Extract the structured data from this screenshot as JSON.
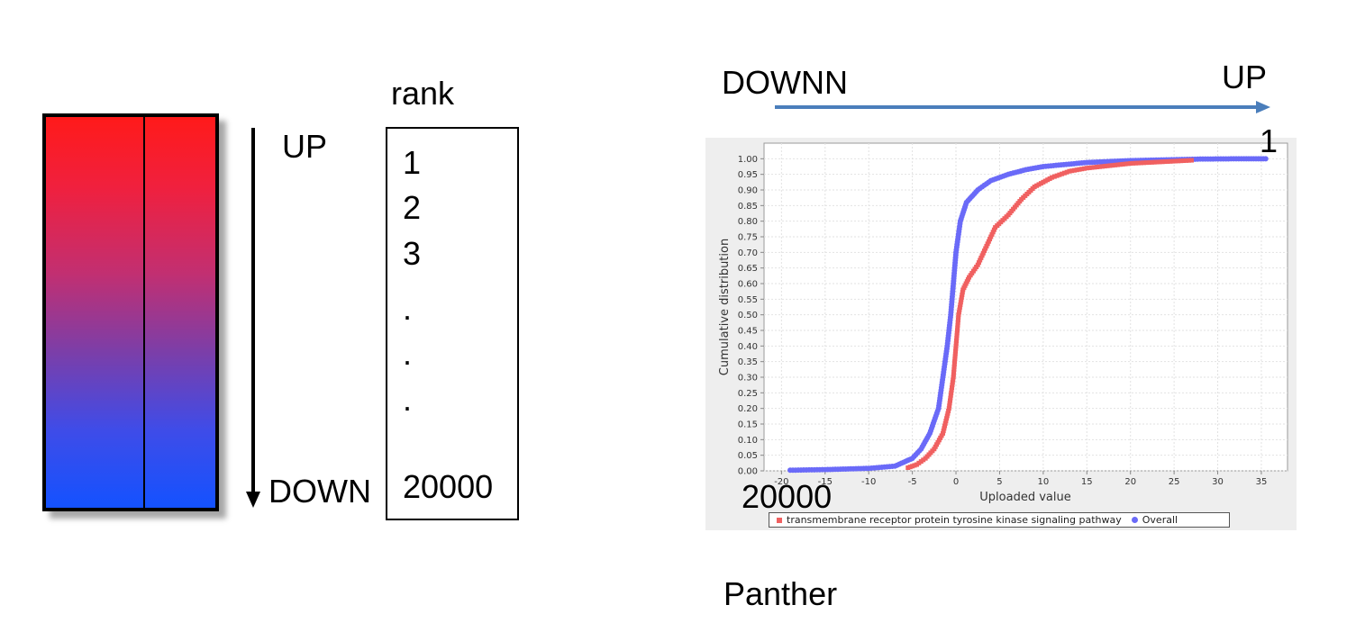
{
  "heatmap": {
    "top_color": "#ff1a1a",
    "bottom_color": "#1452ff"
  },
  "left_labels": {
    "up": "UP",
    "down": "DOWN",
    "rank_header": "rank"
  },
  "rank_list": [
    "1",
    "2",
    "3",
    ".",
    ".",
    ".",
    "20000"
  ],
  "direction": {
    "down": "DOWNN",
    "up": "UP",
    "arrow_color": "#4a7ebb"
  },
  "chart_annotations": {
    "one": "1",
    "twenty_thousand": "20000"
  },
  "caption": "Panther",
  "chart_data": {
    "type": "scatter",
    "xlabel": "Uploaded value",
    "ylabel": "Cumulative distribution",
    "xlim": [
      -22,
      38
    ],
    "ylim": [
      0,
      1.05
    ],
    "xticks": [
      "-20",
      "-15",
      "-10",
      "-5",
      "0",
      "5",
      "10",
      "15",
      "20",
      "25",
      "30",
      "35"
    ],
    "yticks": [
      "0.00",
      "0.05",
      "0.10",
      "0.15",
      "0.20",
      "0.25",
      "0.30",
      "0.35",
      "0.40",
      "0.45",
      "0.50",
      "0.55",
      "0.60",
      "0.65",
      "0.70",
      "0.75",
      "0.80",
      "0.85",
      "0.90",
      "0.95",
      "1.00"
    ],
    "grid": true,
    "legend_position": "bottom",
    "series": [
      {
        "name": "transmembrane receptor protein tyrosine kinase signaling pathway",
        "color": "#f06060",
        "marker": "square",
        "points": [
          [
            -5.5,
            0.01
          ],
          [
            -4.5,
            0.02
          ],
          [
            -3.5,
            0.04
          ],
          [
            -2.5,
            0.07
          ],
          [
            -1.5,
            0.12
          ],
          [
            -0.8,
            0.2
          ],
          [
            -0.3,
            0.3
          ],
          [
            0,
            0.4
          ],
          [
            0.3,
            0.5
          ],
          [
            0.8,
            0.58
          ],
          [
            1.5,
            0.62
          ],
          [
            2.5,
            0.66
          ],
          [
            3.5,
            0.72
          ],
          [
            4.5,
            0.78
          ],
          [
            6,
            0.82
          ],
          [
            7.5,
            0.87
          ],
          [
            9,
            0.91
          ],
          [
            11,
            0.94
          ],
          [
            13,
            0.96
          ],
          [
            15,
            0.97
          ],
          [
            20,
            0.985
          ],
          [
            27,
            0.995
          ]
        ]
      },
      {
        "name": "Overall",
        "color": "#6a6af8",
        "marker": "circle",
        "points": [
          [
            -19,
            0.002
          ],
          [
            -15,
            0.004
          ],
          [
            -10,
            0.008
          ],
          [
            -7,
            0.015
          ],
          [
            -5,
            0.04
          ],
          [
            -4,
            0.07
          ],
          [
            -3,
            0.12
          ],
          [
            -2,
            0.2
          ],
          [
            -1.5,
            0.3
          ],
          [
            -1,
            0.4
          ],
          [
            -0.6,
            0.5
          ],
          [
            -0.3,
            0.6
          ],
          [
            0,
            0.7
          ],
          [
            0.5,
            0.8
          ],
          [
            1.2,
            0.86
          ],
          [
            2.5,
            0.9
          ],
          [
            4,
            0.93
          ],
          [
            6,
            0.95
          ],
          [
            8,
            0.965
          ],
          [
            10,
            0.975
          ],
          [
            15,
            0.988
          ],
          [
            20,
            0.994
          ],
          [
            25,
            0.997
          ],
          [
            28,
            0.999
          ],
          [
            33,
            1.0
          ],
          [
            35.5,
            1.0
          ]
        ]
      }
    ]
  }
}
